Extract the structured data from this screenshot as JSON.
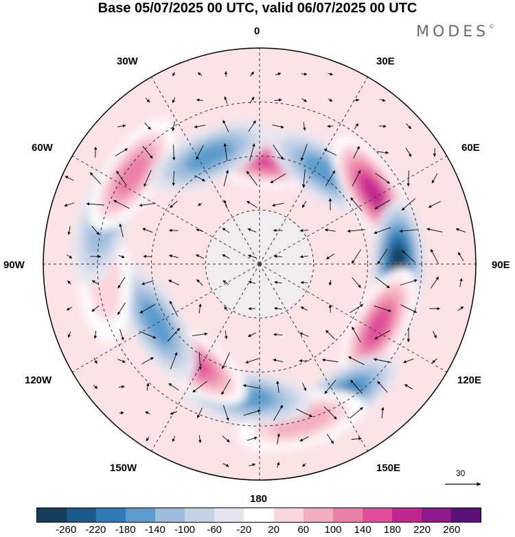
{
  "title": "Base 05/07/2025 00 UTC, valid 06/07/2025 00 UTC",
  "brand": "MODES",
  "brand_mark": "©",
  "longitude_labels": {
    "lon_0": "0",
    "lon_30E": "30E",
    "lon_60E": "60E",
    "lon_90E": "90E",
    "lon_120E": "120E",
    "lon_150E": "150E",
    "lon_180": "180",
    "lon_150W": "150W",
    "lon_120W": "120W",
    "lon_90W": "90W",
    "lon_60W": "60W",
    "lon_30W": "30W"
  },
  "vector_reference": {
    "label": "30"
  },
  "colorbar": {
    "colors": [
      "#173c5a",
      "#1a5a88",
      "#2f7bb5",
      "#5b9ccc",
      "#9bbcdc",
      "#c5d2e6",
      "#e6e6f0",
      "#ffffff",
      "#fbd6dc",
      "#f4aec0",
      "#ec7fa8",
      "#df4e99",
      "#c12590",
      "#8e1a8e",
      "#5b0f78"
    ],
    "tick_labels": [
      "-260",
      "-220",
      "-180",
      "-140",
      "-100",
      "-60",
      "-20",
      "20",
      "60",
      "100",
      "140",
      "180",
      "220",
      "260"
    ]
  },
  "anomaly_fields": [
    {
      "lon": 5,
      "r": 0.48,
      "value": 190
    },
    {
      "lon": 35,
      "r": 0.52,
      "value": -150
    },
    {
      "lon": 58,
      "r": 0.62,
      "value": 250
    },
    {
      "lon": 90,
      "r": 0.64,
      "value": -270
    },
    {
      "lon": 118,
      "r": 0.62,
      "value": 200
    },
    {
      "lon": 148,
      "r": 0.72,
      "value": -180
    },
    {
      "lon": 165,
      "r": 0.75,
      "value": 120
    },
    {
      "lon": -175,
      "r": 0.62,
      "value": -160
    },
    {
      "lon": -145,
      "r": 0.55,
      "value": 180
    },
    {
      "lon": -120,
      "r": 0.55,
      "value": -170
    },
    {
      "lon": -95,
      "r": 0.72,
      "value": 60
    },
    {
      "lon": -75,
      "r": 0.75,
      "value": -120
    },
    {
      "lon": -55,
      "r": 0.72,
      "value": 170
    },
    {
      "lon": -25,
      "r": 0.55,
      "value": -140
    }
  ]
}
